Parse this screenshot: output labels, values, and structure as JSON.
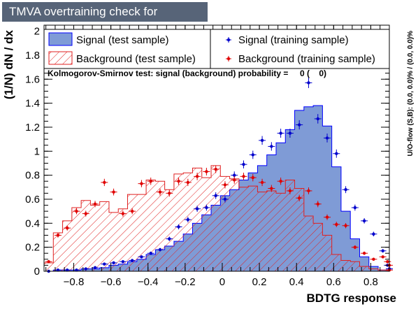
{
  "title": "TMVA overtraining check for classifier: BDTG",
  "chart_data": {
    "type": "histogram",
    "xlabel": "BDTG response",
    "ylabel": "(1/N) dN / dx",
    "xlim": [
      -0.96,
      0.9
    ],
    "ylim": [
      0,
      2.05
    ],
    "x_ticks": [
      -0.8,
      -0.6,
      -0.4,
      -0.2,
      0,
      0.2,
      0.4,
      0.6,
      0.8
    ],
    "y_ticks": [
      0,
      0.2,
      0.4,
      0.6,
      0.8,
      1,
      1.2,
      1.4,
      1.6,
      1.8,
      2
    ],
    "x_tick_labels": [
      "−0.8",
      "−0.6",
      "−0.4",
      "−0.2",
      "0",
      "0.2",
      "0.4",
      "0.6",
      "0.8"
    ],
    "y_tick_labels": [
      "0",
      "0.2",
      "0.4",
      "0.6",
      "0.8",
      "1",
      "1.2",
      "1.4",
      "1.6",
      "1.8",
      "2"
    ],
    "ks_text": "Kolmogorov-Smirnov test: signal (background) probability =     0 (    0)",
    "side_text": "U/O-flow (S,B): (0.0, 0.0)% / (0.0, 0.0)%",
    "bin_edges": [
      -0.96,
      -0.91,
      -0.86,
      -0.81,
      -0.76,
      -0.71,
      -0.66,
      -0.61,
      -0.56,
      -0.51,
      -0.46,
      -0.41,
      -0.36,
      -0.31,
      -0.26,
      -0.21,
      -0.16,
      -0.11,
      -0.06,
      -0.01,
      0.04,
      0.09,
      0.14,
      0.19,
      0.24,
      0.29,
      0.34,
      0.39,
      0.44,
      0.49,
      0.54,
      0.59,
      0.64,
      0.69,
      0.74,
      0.79,
      0.84,
      0.89
    ],
    "legend": {
      "signal_test": "Signal (test sample)",
      "background_test": "Background (test sample)",
      "signal_train": "Signal (training sample)",
      "background_train": "Background (training sample)"
    },
    "colors": {
      "signal_fill": "#7f9bd6",
      "signal_line": "#0000ff",
      "background_line": "#e02020",
      "signal_marker": "#0000cc",
      "background_marker": "#e00000",
      "title_bg": "#576478"
    },
    "signal_test": [
      0.0,
      0.01,
      0.01,
      0.01,
      0.02,
      0.02,
      0.03,
      0.05,
      0.06,
      0.08,
      0.1,
      0.14,
      0.18,
      0.21,
      0.25,
      0.31,
      0.4,
      0.47,
      0.55,
      0.63,
      0.68,
      0.76,
      0.82,
      0.88,
      0.97,
      1.07,
      1.18,
      1.34,
      1.37,
      1.38,
      1.21,
      0.87,
      0.5,
      0.27,
      0.12,
      0.04,
      0.01
    ],
    "background_test": [
      0.07,
      0.32,
      0.42,
      0.53,
      0.59,
      0.55,
      0.58,
      0.49,
      0.52,
      0.64,
      0.64,
      0.76,
      0.75,
      0.68,
      0.81,
      0.82,
      0.86,
      0.78,
      0.88,
      0.79,
      0.77,
      0.7,
      0.71,
      0.66,
      0.67,
      0.65,
      0.76,
      0.69,
      0.46,
      0.4,
      0.3,
      0.14,
      0.09,
      0.08,
      0.04,
      0.02,
      0.01
    ],
    "signal_train": [
      0.0,
      0.01,
      0.01,
      0.01,
      0.02,
      0.03,
      0.06,
      0.07,
      0.08,
      0.09,
      0.12,
      0.15,
      0.18,
      0.27,
      0.37,
      0.43,
      0.52,
      0.53,
      0.63,
      0.6,
      0.8,
      0.89,
      0.97,
      1.09,
      1.04,
      1.15,
      1.15,
      1.22,
      1.57,
      1.27,
      1.11,
      0.98,
      0.68,
      0.53,
      0.42,
      0.31,
      0.17,
      0.05,
      0.02,
      0.02
    ],
    "background_train": [
      0.08,
      0.3,
      0.36,
      0.5,
      0.48,
      0.56,
      0.74,
      0.66,
      0.48,
      0.5,
      0.73,
      0.75,
      0.66,
      0.65,
      0.75,
      0.74,
      0.79,
      0.83,
      0.85,
      0.72,
      0.76,
      0.79,
      0.78,
      0.74,
      0.69,
      0.75,
      0.67,
      0.61,
      0.67,
      0.56,
      0.45,
      0.39,
      0.38,
      0.2,
      0.15,
      0.1,
      0.12,
      0.08,
      0.05,
      0.01
    ],
    "signal_train_x": [
      -0.935,
      -0.885,
      -0.835,
      -0.785,
      -0.735,
      -0.685,
      -0.635,
      -0.585,
      -0.535,
      -0.485,
      -0.435,
      -0.385,
      -0.335,
      -0.285,
      -0.235,
      -0.185,
      -0.135,
      -0.085,
      -0.035,
      0.015,
      0.065,
      0.115,
      0.165,
      0.215,
      0.265,
      0.315,
      0.365,
      0.415,
      0.465,
      0.515,
      0.565,
      0.615,
      0.665,
      0.715,
      0.765,
      0.815,
      0.865,
      0.89,
      0.9,
      0.9
    ],
    "background_train_x": [
      -0.935,
      -0.885,
      -0.835,
      -0.785,
      -0.735,
      -0.685,
      -0.635,
      -0.585,
      -0.535,
      -0.485,
      -0.435,
      -0.385,
      -0.335,
      -0.285,
      -0.235,
      -0.185,
      -0.135,
      -0.085,
      -0.035,
      0.015,
      0.065,
      0.115,
      0.165,
      0.215,
      0.265,
      0.315,
      0.365,
      0.415,
      0.465,
      0.515,
      0.565,
      0.615,
      0.665,
      0.715,
      0.765,
      0.815,
      0.865,
      0.89,
      0.9,
      0.9
    ]
  }
}
